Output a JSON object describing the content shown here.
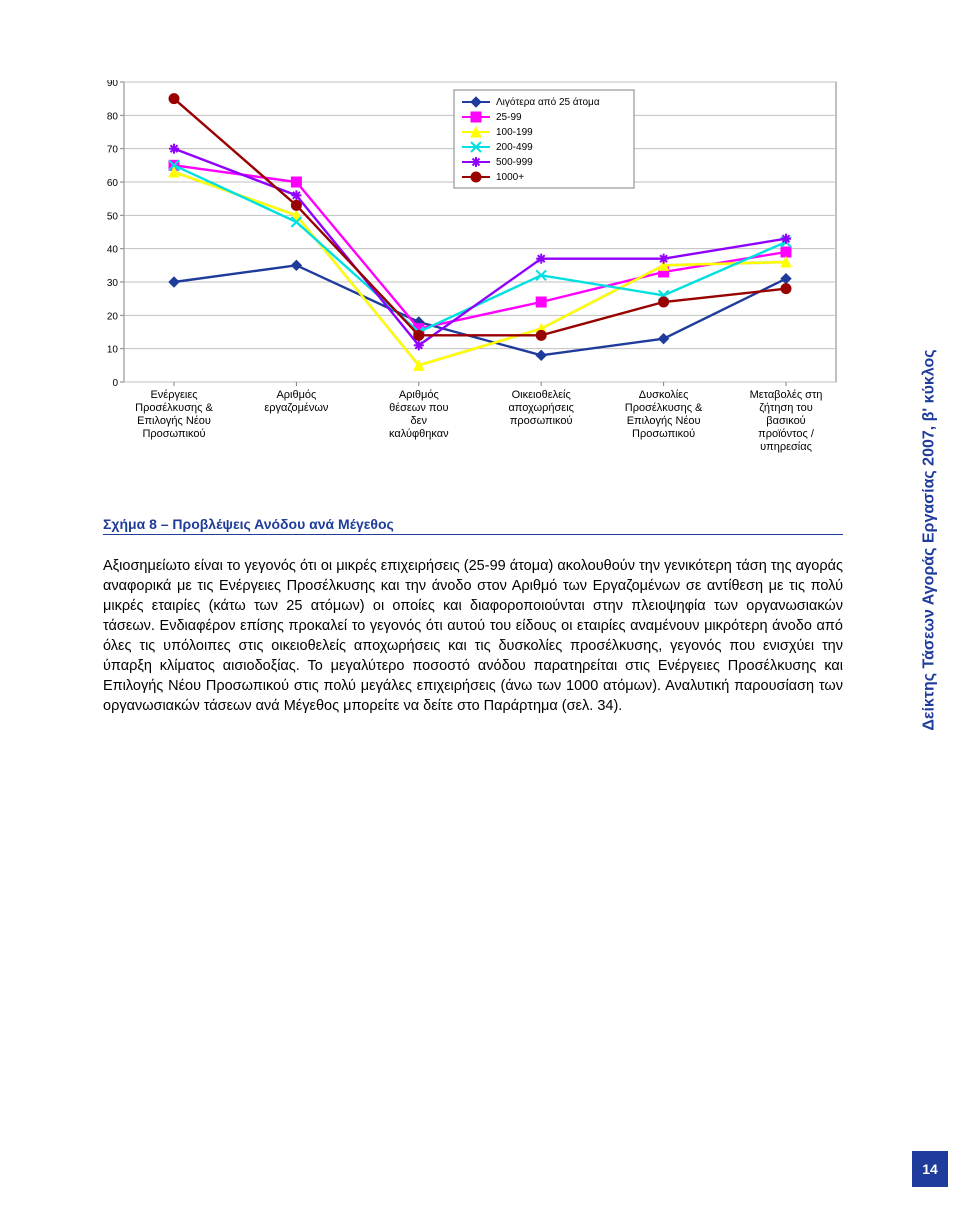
{
  "side_label": "Δείκτης Τάσεων Αγοράς Εργασίας 2007,  β' κύκλος",
  "page_number": "14",
  "caption": "Σχήμα 8 – Προβλέψεις Ανόδου ανά Μέγεθος",
  "body_text": "Αξιοσημείωτο είναι το γεγονός ότι οι μικρές επιχειρήσεις (25-99 άτομα) ακολουθούν την γενικότερη τάση της αγοράς αναφορικά με τις Ενέργειες Προσέλκυσης και την άνοδο στον Αριθμό των Εργαζομένων σε αντίθεση με τις πολύ μικρές εταιρίες (κάτω των 25 ατόμων) οι οποίες και διαφοροποιούνται στην πλειοψηφία των οργανωσιακών τάσεων. Ενδιαφέρον επίσης προκαλεί το γεγονός ότι αυτού του είδους οι εταιρίες αναμένουν μικρότερη άνοδο από όλες τις υπόλοιπες στις οικειοθελείς αποχωρήσεις και τις δυσκολίες προσέλκυσης, γεγονός που ενισχύει την ύπαρξη κλίματος αισιοδοξίας. Το μεγαλύτερο ποσοστό ανόδου παρατηρείται στις Ενέργειες Προσέλκυσης και Επιλογής Νέου Προσωπικού στις πολύ μεγάλες επιχειρήσεις (άνω των 1000 ατόμων). Αναλυτική παρουσίαση των οργανωσιακών τάσεων ανά Μέγεθος μπορείτε να δείτε στο Παράρτημα (σελ. 34).",
  "chart": {
    "type": "line",
    "background_color": "#ffffff",
    "border_color": "#808080",
    "ylim": [
      0,
      90
    ],
    "ytick_step": 10,
    "ytick_labels": [
      "0",
      "10",
      "20",
      "30",
      "40",
      "50",
      "60",
      "70",
      "80",
      "90"
    ],
    "grid_color": "#c0c0c0",
    "series": [
      {
        "name": "Λιγότερα από 25 άτομα",
        "color": "#1f3b9b",
        "marker": "diamond",
        "values": [
          30,
          35,
          18,
          8,
          13,
          31
        ]
      },
      {
        "name": "25-99",
        "color": "#ff00ff",
        "marker": "square",
        "values": [
          65,
          60,
          16,
          24,
          33,
          39
        ]
      },
      {
        "name": "100-199",
        "color": "#ffff00",
        "marker": "triangle",
        "values": [
          63,
          50,
          5,
          16,
          35,
          36
        ]
      },
      {
        "name": "200-499",
        "color": "#00e0e0",
        "marker": "x",
        "values": [
          65,
          48,
          15,
          32,
          26,
          42
        ]
      },
      {
        "name": "500-999",
        "color": "#9000ff",
        "marker": "star",
        "values": [
          70,
          56,
          11,
          37,
          37,
          43
        ]
      },
      {
        "name": "1000+",
        "color": "#990000",
        "marker": "circle",
        "values": [
          85,
          53,
          14,
          14,
          24,
          28
        ]
      }
    ],
    "categories": [
      "Ενέργειες Προσέλκυσης & Επιλογής Νέου Προσωπικού",
      "Αριθμός εργαζομένων",
      "Αριθμός θέσεων που δεν καλύφθηκαν",
      "Οικειοθελείς αποχωρήσεις προσωπικού",
      "Δυσκολίες Προσέλκυσης & Επιλογής Νέου Προσωπικού",
      "Μεταβολές στη ζήτηση του βασικού προϊόντος / υπηρεσίας"
    ],
    "legend_position": "top-right"
  }
}
